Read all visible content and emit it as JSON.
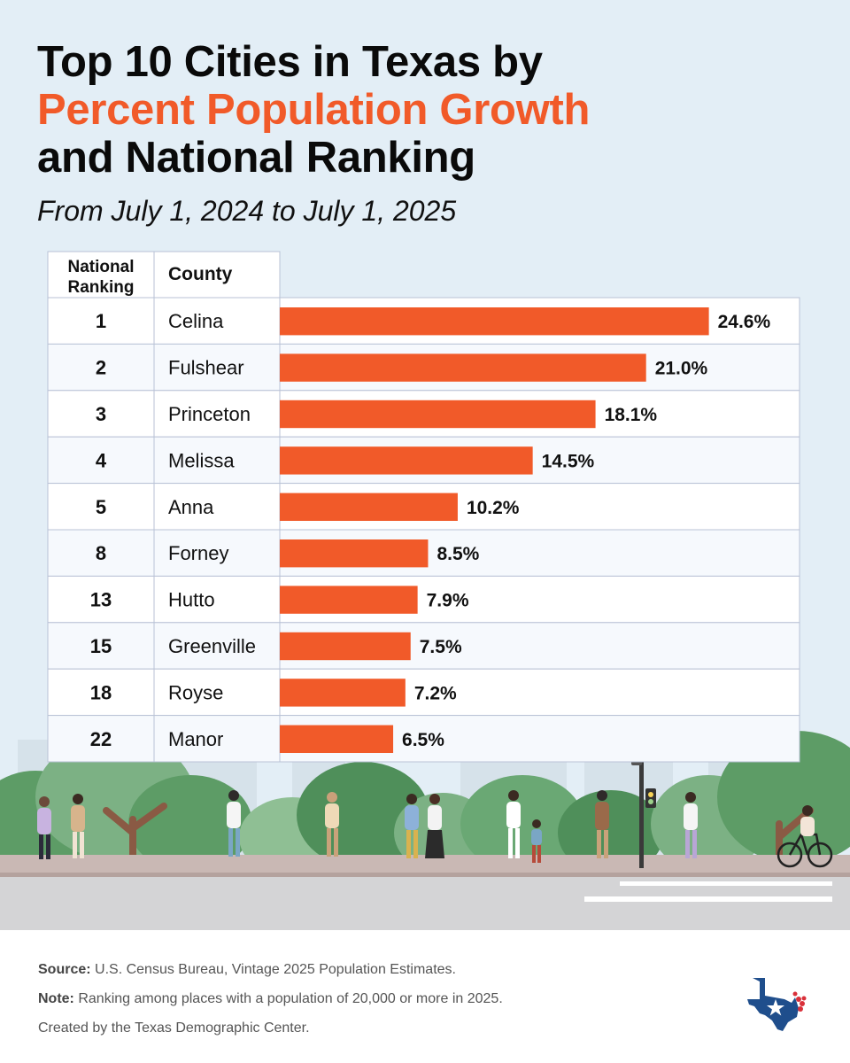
{
  "title": {
    "line1": "Top 10 Cities in Texas by",
    "line2": "Percent Population Growth",
    "line3": "and National Ranking"
  },
  "subtitle": "From July 1, 2024 to July 1, 2025",
  "chart_data": {
    "type": "bar",
    "orientation": "horizontal",
    "columns": [
      "National Ranking",
      "County"
    ],
    "categories": [
      "Celina",
      "Fulshear",
      "Princeton",
      "Melissa",
      "Anna",
      "Forney",
      "Hutto",
      "Greenville",
      "Royse",
      "Manor"
    ],
    "rankings": [
      1,
      2,
      3,
      4,
      5,
      8,
      13,
      15,
      18,
      22
    ],
    "values": [
      24.6,
      21.0,
      18.1,
      14.5,
      10.2,
      8.5,
      7.9,
      7.5,
      7.2,
      6.5
    ],
    "value_labels": [
      "24.6%",
      "21.0%",
      "18.1%",
      "14.5%",
      "10.2%",
      "8.5%",
      "7.9%",
      "7.5%",
      "7.2%",
      "6.5%"
    ],
    "bar_color": "#f15a29",
    "grid": false,
    "legend": "none"
  },
  "footer": {
    "source_label": "Source:",
    "source_text": " U.S. Census Bureau, Vintage 2025 Population Estimates.",
    "note_label": "Note:",
    "note_text": " Ranking among places with a population of 20,000 or more in 2025.",
    "credit": "Created by the Texas Demographic Center."
  },
  "colors": {
    "accent": "#f15a29",
    "background": "#e3eef6",
    "table_border": "#b9c2d6"
  }
}
